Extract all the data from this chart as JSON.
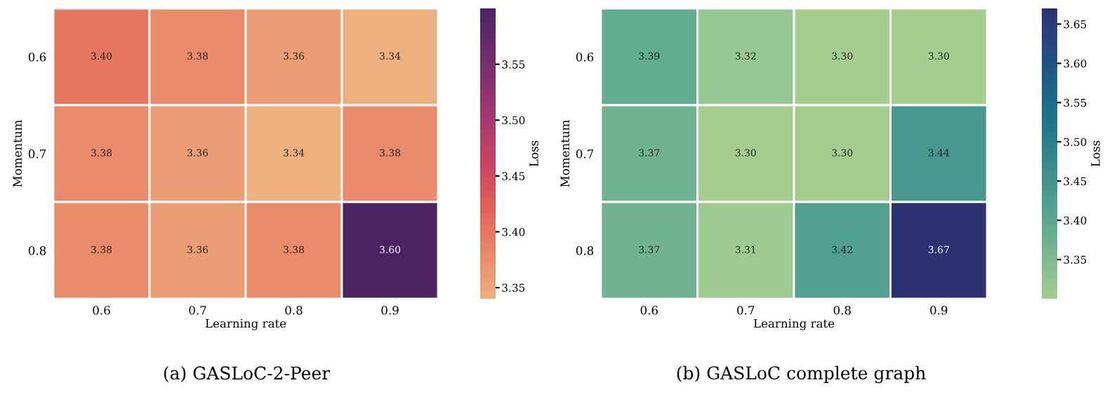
{
  "chart_data": [
    {
      "type": "heatmap",
      "title": "(a) GASLoC-2-Peer",
      "xlabel": "Learning rate",
      "ylabel": "Momentum",
      "clabel": "Loss",
      "categories": [
        "0.6",
        "0.7",
        "0.8",
        "0.9"
      ],
      "y_categories": [
        "0.6",
        "0.7",
        "0.8"
      ],
      "cells": [
        [
          3.4,
          3.38,
          3.36,
          3.34
        ],
        [
          3.38,
          3.36,
          3.34,
          3.38
        ],
        [
          3.38,
          3.36,
          3.38,
          3.6
        ]
      ],
      "cell_labels": [
        [
          "3.40",
          "3.38",
          "3.36",
          "3.34"
        ],
        [
          "3.38",
          "3.36",
          "3.34",
          "3.38"
        ],
        [
          "3.38",
          "3.36",
          "3.38",
          "3.60"
        ]
      ],
      "clim": [
        3.34,
        3.6
      ],
      "cticks": [
        3.35,
        {
          "value": 3.4,
          "label": "3.40"
        },
        3.45,
        {
          "value": 3.5,
          "label": "3.50"
        },
        3.55
      ]
    },
    {
      "type": "heatmap",
      "title": "(b) GASLoC complete graph",
      "xlabel": "Learning rate",
      "ylabel": "Momentum",
      "clabel": "Loss",
      "categories": [
        "0.6",
        "0.7",
        "0.8",
        "0.9"
      ],
      "y_categories": [
        "0.6",
        "0.7",
        "0.8"
      ],
      "cells": [
        [
          3.39,
          3.32,
          3.3,
          3.3
        ],
        [
          3.37,
          3.3,
          3.3,
          3.44
        ],
        [
          3.37,
          3.31,
          3.42,
          3.67
        ]
      ],
      "cell_labels": [
        [
          "3.39",
          "3.32",
          "3.30",
          "3.30"
        ],
        [
          "3.37",
          "3.30",
          "3.30",
          "3.44"
        ],
        [
          "3.37",
          "3.31",
          "3.42",
          "3.67"
        ]
      ],
      "clim": [
        3.3,
        3.67
      ],
      "cticks": [
        3.35,
        {
          "value": 3.4,
          "label": "3.40"
        },
        3.45,
        {
          "value": 3.5,
          "label": "3.50"
        },
        3.55,
        {
          "value": 3.6,
          "label": "3.60"
        },
        3.65
      ]
    }
  ]
}
